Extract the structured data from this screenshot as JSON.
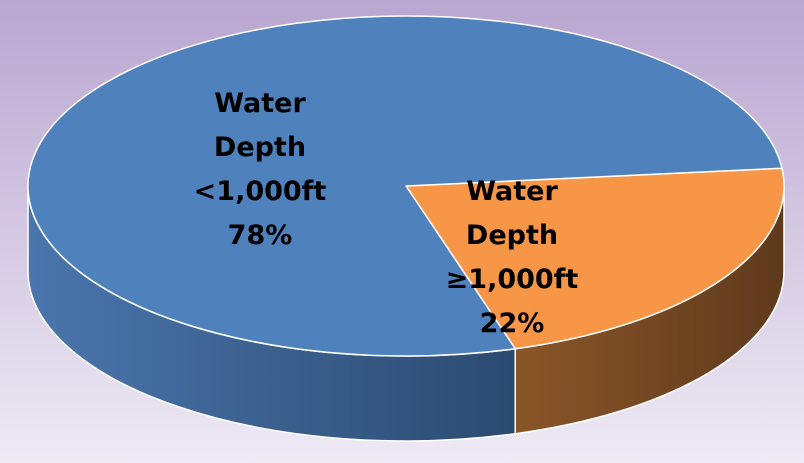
{
  "chart_data": {
    "type": "pie",
    "style": "3d",
    "title": "",
    "legend": "none",
    "slices": [
      {
        "label_lines": [
          "Water",
          "Depth",
          "<1,000ft",
          "78%"
        ],
        "value": 78,
        "color": "#4F81BD",
        "side_color_dark": "#2C4A70",
        "side_color_light": "#4A76AD"
      },
      {
        "label_lines": [
          "Water",
          "Depth",
          "≥1,000ft",
          "22%"
        ],
        "value": 22,
        "color": "#F79646",
        "side_color_dark": "#5E3A1C",
        "side_color_light": "#8A5628"
      }
    ]
  },
  "colors": {
    "background_top": "#B9A6D1",
    "background_bottom": "#EEEAF4",
    "edge": "#FFFFFF"
  }
}
